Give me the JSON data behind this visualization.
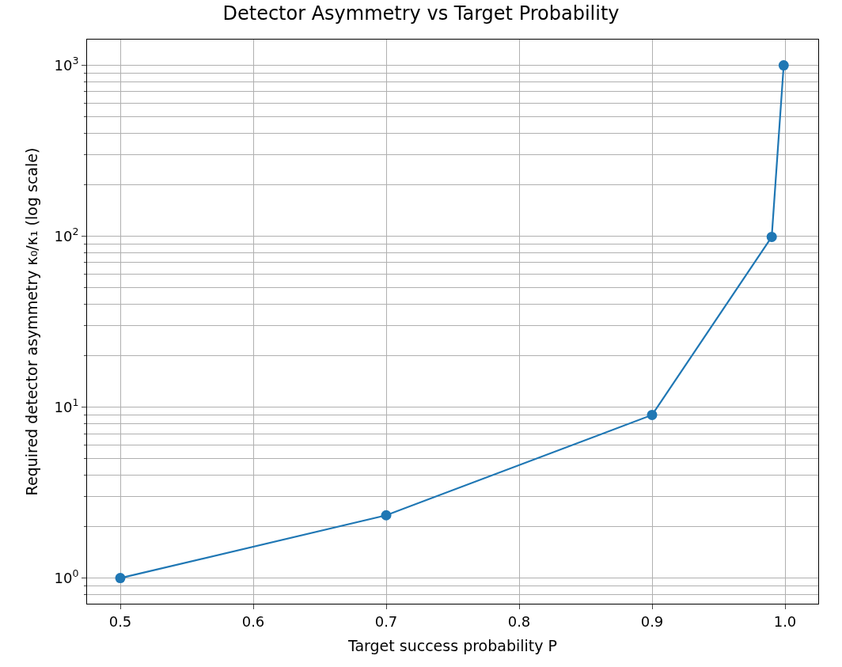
{
  "chart_data": {
    "type": "line",
    "title": "Detector Asymmetry vs Target Probability",
    "xlabel": "Target success probability P",
    "ylabel": "Required detector asymmetry κ₀/κ₁ (log scale)",
    "x": [
      0.5,
      0.7,
      0.9,
      0.99,
      0.999
    ],
    "series": [
      {
        "color": "#1f77b4",
        "values": [
          1,
          2.33,
          9,
          99,
          999
        ]
      }
    ],
    "log": "y",
    "xlim": [
      0.475,
      1.025
    ],
    "xticks": [
      0.5,
      0.6,
      0.7,
      0.8,
      0.9,
      {
        "value": 1.0,
        "label": "1.0"
      }
    ],
    "ylim": [
      0.708,
      1413
    ],
    "yticks": [
      {
        "value": 1,
        "label": "10$^{0}$"
      },
      {
        "value": 10,
        "label": "10$^{1}$"
      },
      {
        "value": 100,
        "label": "10$^{2}$"
      },
      {
        "value": 1000,
        "label": "10$^{3}$"
      }
    ],
    "grid": true,
    "marker": "circle",
    "line_style": "solid"
  }
}
